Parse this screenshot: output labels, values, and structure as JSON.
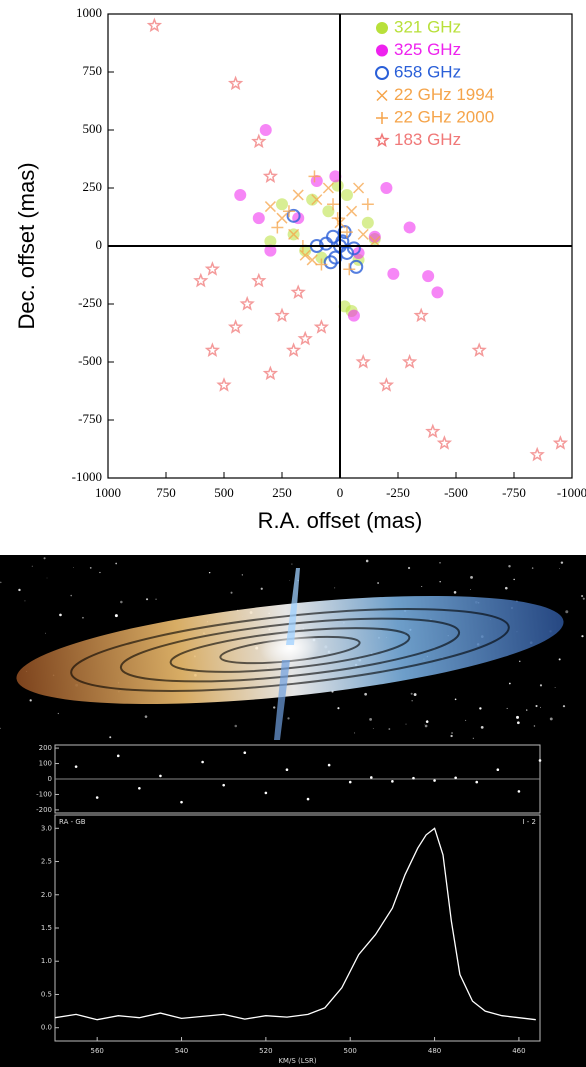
{
  "chart_data": [
    {
      "type": "scatter",
      "xlabel": "R.A. offset (mas)",
      "ylabel": "Dec. offset (mas)",
      "xlim": [
        1000,
        -1000
      ],
      "ylim": [
        -1000,
        1000
      ],
      "xticks": [
        1000,
        750,
        500,
        250,
        0,
        -250,
        -500,
        -750,
        -1000
      ],
      "yticks": [
        -1000,
        -750,
        -500,
        -250,
        0,
        250,
        500,
        750,
        1000
      ],
      "legend": "upper right",
      "series": [
        {
          "name": "321 GHz",
          "color": "#b8e03a",
          "marker": "circle",
          "x": [
            50,
            120,
            -30,
            200,
            -120,
            80,
            10,
            -80,
            250,
            -150,
            150,
            -20,
            300,
            -50
          ],
          "y": [
            150,
            200,
            220,
            50,
            100,
            -50,
            260,
            -60,
            180,
            30,
            -20,
            -260,
            20,
            -280
          ]
        },
        {
          "name": "325 GHz",
          "color": "#ee22ee",
          "marker": "circle",
          "x": [
            320,
            430,
            -200,
            -230,
            -380,
            -420,
            -60,
            100,
            300,
            -150,
            180,
            -300,
            20,
            350,
            -80
          ],
          "y": [
            500,
            220,
            250,
            -120,
            -130,
            -200,
            -300,
            280,
            -20,
            40,
            120,
            80,
            300,
            120,
            -30
          ]
        },
        {
          "name": "658 GHz",
          "color": "#2a5fd8",
          "marker": "open-circle",
          "x": [
            0,
            30,
            -30,
            60,
            -60,
            20,
            -20,
            200,
            -70,
            100,
            -10,
            40
          ],
          "y": [
            0,
            40,
            -30,
            10,
            -10,
            -50,
            60,
            130,
            -90,
            0,
            20,
            -70
          ]
        },
        {
          "name": "22 GHz 1994",
          "color": "#f5a44a",
          "marker": "x",
          "x": [
            0,
            100,
            200,
            -50,
            150,
            250,
            50,
            -100,
            300,
            180,
            -80,
            120,
            -150
          ],
          "y": [
            100,
            200,
            50,
            150,
            -40,
            120,
            250,
            50,
            170,
            220,
            250,
            -60,
            20
          ]
        },
        {
          "name": "22 GHz 2000",
          "color": "#f5a44a",
          "marker": "plus",
          "x": [
            30,
            -30,
            220,
            80,
            -120,
            270,
            160,
            -40,
            110,
            10
          ],
          "y": [
            180,
            60,
            150,
            -80,
            180,
            80,
            0,
            -100,
            300,
            120
          ]
        },
        {
          "name": "183 GHz",
          "color": "#f07878",
          "marker": "star",
          "x": [
            800,
            450,
            350,
            300,
            250,
            150,
            400,
            500,
            550,
            600,
            -100,
            -200,
            -300,
            -350,
            -400,
            -450,
            -600,
            -850,
            -950,
            200,
            80,
            350,
            450,
            550,
            300,
            180
          ],
          "y": [
            950,
            700,
            450,
            300,
            -300,
            -400,
            -250,
            -600,
            -100,
            -150,
            -500,
            -600,
            -500,
            -300,
            -800,
            -850,
            -450,
            -900,
            -850,
            -450,
            -350,
            -150,
            -350,
            -450,
            -550,
            -200
          ]
        }
      ]
    },
    {
      "type": "scatter",
      "color": "#ffffff",
      "xlim": [
        570,
        455
      ],
      "ylim": [
        -220,
        220
      ],
      "yticks": [
        -200,
        -100,
        0,
        100,
        200
      ],
      "x": [
        565,
        560,
        555,
        550,
        545,
        540,
        535,
        530,
        525,
        520,
        515,
        510,
        505,
        500,
        495,
        490,
        485,
        480,
        475,
        470,
        465,
        460,
        455
      ],
      "values": [
        80,
        -120,
        150,
        -60,
        20,
        -150,
        110,
        -40,
        170,
        -90,
        60,
        -130,
        90,
        -20,
        10,
        -15,
        5,
        -10,
        8,
        -20,
        60,
        -80,
        120
      ]
    },
    {
      "type": "line",
      "color": "#ffffff",
      "annotations": [
        "RA - GB",
        "I - 2"
      ],
      "xlabel": "KM/S (LSR)",
      "xlim": [
        570,
        455
      ],
      "xticks": [
        560,
        540,
        520,
        500,
        480,
        460
      ],
      "ylim": [
        -0.2,
        3.2
      ],
      "yticks": [
        {
          "value": 0,
          "label": "0.0"
        },
        0.5,
        {
          "value": 1,
          "label": "1.0"
        },
        1.5,
        {
          "value": 2,
          "label": "2.0"
        },
        2.5,
        {
          "value": 3,
          "label": "3.0"
        }
      ],
      "x": [
        570,
        565,
        560,
        555,
        550,
        545,
        540,
        535,
        530,
        525,
        520,
        515,
        510,
        506,
        502,
        498,
        494,
        490,
        487,
        484,
        482,
        480,
        478,
        476,
        474,
        471,
        468,
        464,
        460,
        456
      ],
      "values": [
        0.15,
        0.2,
        0.12,
        0.18,
        0.15,
        0.22,
        0.14,
        0.17,
        0.2,
        0.13,
        0.18,
        0.16,
        0.2,
        0.3,
        0.6,
        1.1,
        1.4,
        1.8,
        2.3,
        2.7,
        2.9,
        3.0,
        2.6,
        1.6,
        0.8,
        0.4,
        0.25,
        0.18,
        0.15,
        0.12
      ]
    }
  ]
}
